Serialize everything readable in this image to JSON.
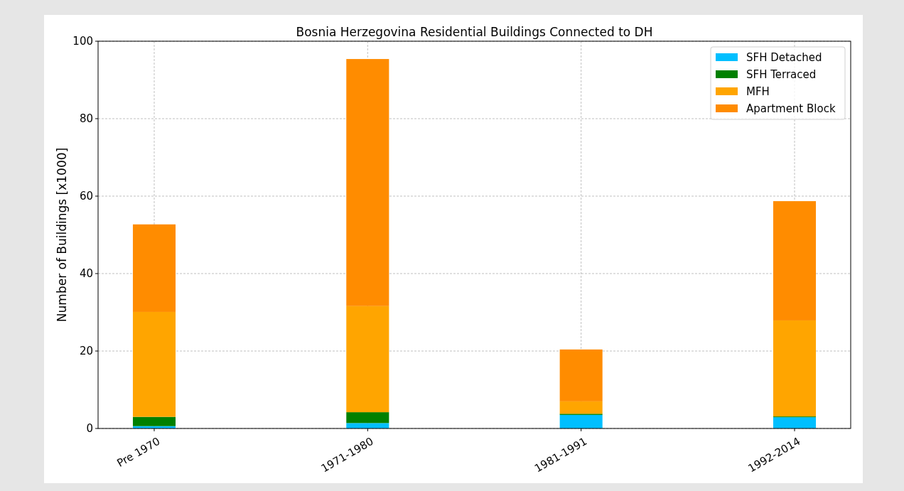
{
  "chart_data": {
    "type": "bar",
    "title": "Bosnia Herzegovina Residential Buildings Connected to DH",
    "ylabel": "Number of Buildings [x1000]",
    "categories": [
      "Pre 1970",
      "1971-1980",
      "1981-1991",
      "1992-2014"
    ],
    "stacked": true,
    "series": [
      {
        "name": "SFH Detached",
        "color": "#00bfff",
        "values": [
          0.6,
          1.4,
          3.5,
          2.9
        ]
      },
      {
        "name": "SFH Terraced",
        "color": "#008000",
        "values": [
          2.4,
          2.8,
          0.3,
          0.2
        ]
      },
      {
        "name": "MFH",
        "color": "#ffa500",
        "values": [
          27.1,
          27.4,
          3.2,
          24.8
        ]
      },
      {
        "name": "Apartment Block",
        "color": "#ff8c00",
        "values": [
          22.6,
          63.8,
          13.4,
          30.8
        ]
      }
    ],
    "ylim": [
      0,
      100
    ],
    "yticks": [
      0,
      20,
      40,
      60,
      80,
      100
    ],
    "grid": true,
    "legend": "top right"
  }
}
